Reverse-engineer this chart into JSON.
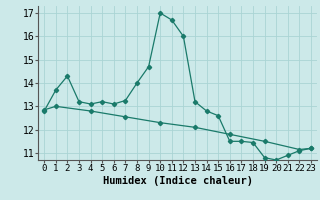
{
  "line1_x": [
    0,
    1,
    2,
    3,
    4,
    5,
    6,
    7,
    8,
    9,
    10,
    11,
    12,
    13,
    14,
    15,
    16,
    17,
    18,
    19,
    20,
    21,
    22,
    23
  ],
  "line1_y": [
    12.8,
    13.7,
    14.3,
    13.2,
    13.1,
    13.2,
    13.1,
    13.25,
    14.0,
    14.7,
    17.0,
    16.7,
    16.0,
    13.2,
    12.8,
    12.6,
    11.5,
    11.5,
    11.45,
    10.8,
    10.7,
    10.9,
    11.1,
    11.2
  ],
  "line2_x": [
    0,
    1,
    4,
    7,
    10,
    13,
    16,
    19,
    22,
    23
  ],
  "line2_y": [
    12.85,
    13.0,
    12.8,
    12.55,
    12.3,
    12.1,
    11.8,
    11.5,
    11.15,
    11.2
  ],
  "color": "#1a7a6a",
  "bg_color": "#cce9e9",
  "grid_color_major": "#aad4d4",
  "grid_color_minor": "#bbdddd",
  "xlabel": "Humidex (Indice chaleur)",
  "xlim": [
    -0.5,
    23.5
  ],
  "ylim": [
    10.7,
    17.3
  ],
  "xticks": [
    0,
    1,
    2,
    3,
    4,
    5,
    6,
    7,
    8,
    9,
    10,
    11,
    12,
    13,
    14,
    15,
    16,
    17,
    18,
    19,
    20,
    21,
    22,
    23
  ],
  "yticks": [
    11,
    12,
    13,
    14,
    15,
    16,
    17
  ],
  "xlabel_fontsize": 7.5,
  "tick_fontsize": 6.5
}
